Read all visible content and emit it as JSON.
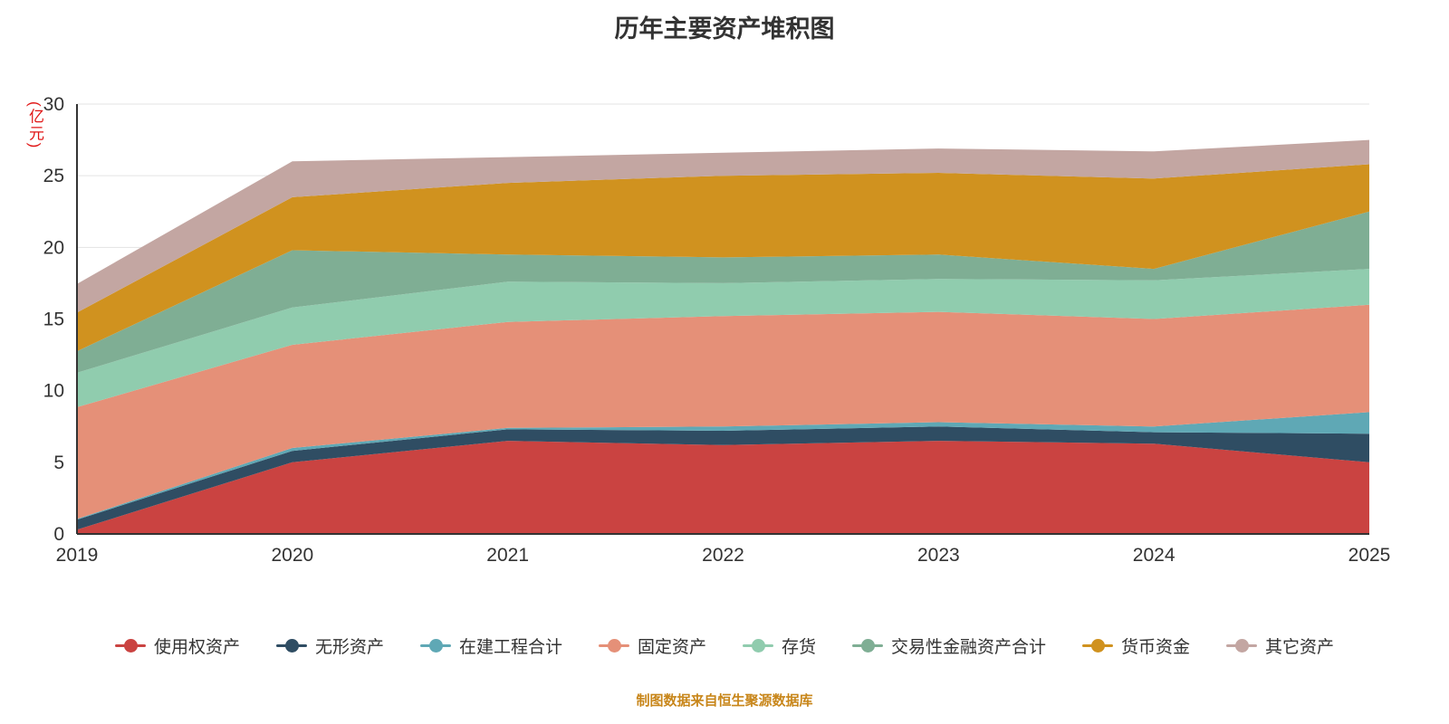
{
  "chart_data": {
    "type": "area",
    "stacked": true,
    "title": "历年主要资产堆积图",
    "unit_label": "(亿元)",
    "caption": "制图数据来自恒生聚源数据库",
    "x": [
      "2019",
      "2020",
      "2021",
      "2022",
      "2023",
      "2024",
      "2025"
    ],
    "ylim": [
      0,
      30
    ],
    "ytick_step": 5,
    "grid": true,
    "legend_position": "bottom",
    "series": [
      {
        "name": "使用权资产",
        "color": "#ca4341",
        "values": [
          0.3,
          5.0,
          6.5,
          6.2,
          6.5,
          6.3,
          5.0
        ]
      },
      {
        "name": "无形资产",
        "color": "#2f4d63",
        "values": [
          0.7,
          0.8,
          0.8,
          1.0,
          1.0,
          0.8,
          2.0
        ]
      },
      {
        "name": "在建工程合计",
        "color": "#5fa8b5",
        "values": [
          0.05,
          0.2,
          0.1,
          0.3,
          0.3,
          0.4,
          1.5
        ]
      },
      {
        "name": "固定资产",
        "color": "#e59078",
        "values": [
          7.8,
          7.2,
          7.4,
          7.7,
          7.7,
          7.5,
          7.5
        ]
      },
      {
        "name": "存货",
        "color": "#90ccae",
        "values": [
          2.4,
          2.6,
          2.8,
          2.3,
          2.3,
          2.7,
          2.5
        ]
      },
      {
        "name": "交易性金融资产合计",
        "color": "#7fae94",
        "values": [
          1.5,
          4.0,
          1.9,
          1.8,
          1.7,
          0.8,
          4.0
        ]
      },
      {
        "name": "货币资金",
        "color": "#d0921f",
        "values": [
          2.7,
          3.7,
          5.0,
          5.7,
          5.7,
          6.3,
          3.3
        ]
      },
      {
        "name": "其它资产",
        "color": "#c3a6a2",
        "values": [
          2.0,
          2.5,
          1.8,
          1.6,
          1.7,
          1.9,
          1.7
        ]
      }
    ],
    "axis_color": "#333333",
    "grid_color": "#e3e3e3"
  }
}
